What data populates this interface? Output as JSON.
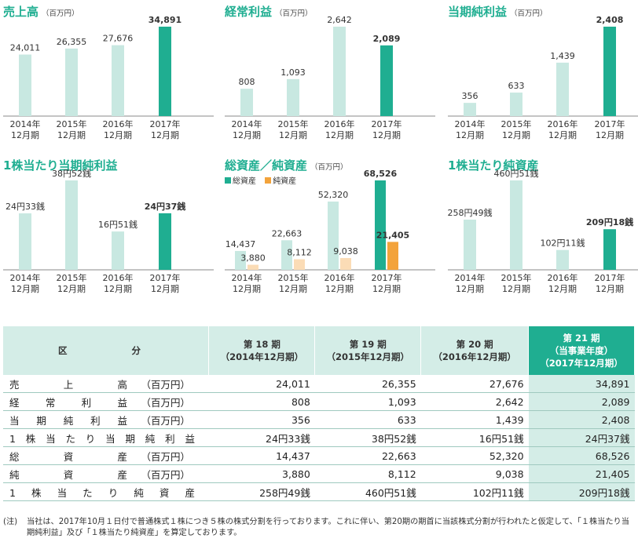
{
  "colors": {
    "accent": "#1fae91",
    "light": "#c8e8e1",
    "orange": "#f3a33b",
    "light_orange": "#fbdcb6"
  },
  "charts": [
    {
      "title": "売上高",
      "unit": "（百万円）"
    },
    {
      "title": "経常利益",
      "unit": "（百万円）"
    },
    {
      "title": "当期純利益",
      "unit": "（百万円）"
    },
    {
      "title": "1株当たり当期純利益",
      "unit": ""
    },
    {
      "title": "総資産／純資産",
      "unit": "（百万円）",
      "legend": [
        "総資産",
        "純資産"
      ]
    },
    {
      "title": "1株当たり純資産",
      "unit": ""
    }
  ],
  "chart_data": [
    {
      "type": "bar",
      "title": "売上高（百万円）",
      "categories": [
        "2014年\n12月期",
        "2015年\n12月期",
        "2016年\n12月期",
        "2017年\n12月期"
      ],
      "values": [
        24011,
        26355,
        27676,
        34891
      ],
      "labels": [
        "24,011",
        "26,355",
        "27,676",
        "34,891"
      ],
      "highlight_last": true
    },
    {
      "type": "bar",
      "title": "経常利益（百万円）",
      "categories": [
        "2014年\n12月期",
        "2015年\n12月期",
        "2016年\n12月期",
        "2017年\n12月期"
      ],
      "values": [
        808,
        1093,
        2642,
        2089
      ],
      "labels": [
        "808",
        "1,093",
        "2,642",
        "2,089"
      ],
      "highlight_last": true
    },
    {
      "type": "bar",
      "title": "当期純利益（百万円）",
      "categories": [
        "2014年\n12月期",
        "2015年\n12月期",
        "2016年\n12月期",
        "2017年\n12月期"
      ],
      "values": [
        356,
        633,
        1439,
        2408
      ],
      "labels": [
        "356",
        "633",
        "1,439",
        "2,408"
      ],
      "highlight_last": true
    },
    {
      "type": "bar",
      "title": "1株当たり当期純利益",
      "categories": [
        "2014年\n12月期",
        "2015年\n12月期",
        "2016年\n12月期",
        "2017年\n12月期"
      ],
      "values": [
        24.33,
        38.52,
        16.51,
        24.37
      ],
      "labels": [
        "24円33銭",
        "38円52銭",
        "16円51銭",
        "24円37銭"
      ],
      "highlight_last": true
    },
    {
      "type": "bar",
      "title": "総資産／純資産（百万円）",
      "categories": [
        "2014年\n12月期",
        "2015年\n12月期",
        "2016年\n12月期",
        "2017年\n12月期"
      ],
      "series": [
        {
          "name": "総資産",
          "values": [
            14437,
            22663,
            52320,
            68526
          ],
          "labels": [
            "14,437",
            "22,663",
            "52,320",
            "68,526"
          ]
        },
        {
          "name": "純資産",
          "values": [
            3880,
            8112,
            9038,
            21405
          ],
          "labels": [
            "3,880",
            "8,112",
            "9,038",
            "21,405"
          ]
        }
      ],
      "highlight_last": true
    },
    {
      "type": "bar",
      "title": "1株当たり純資産",
      "categories": [
        "2014年\n12月期",
        "2015年\n12月期",
        "2016年\n12月期",
        "2017年\n12月期"
      ],
      "values": [
        258.49,
        460.51,
        102.11,
        209.18
      ],
      "labels": [
        "258円49銭",
        "460円51銭",
        "102円11銭",
        "209円18銭"
      ],
      "highlight_last": true
    }
  ],
  "table": {
    "corner_a": "区",
    "corner_b": "分",
    "headers": [
      {
        "line1": "第 18 期",
        "line2": "（2014年12月期）"
      },
      {
        "line1": "第 19 期",
        "line2": "（2015年12月期）"
      },
      {
        "line1": "第 20 期",
        "line2": "（2016年12月期）"
      },
      {
        "line1": "第 21 期",
        "line2": "（当事業年度）",
        "line3": "（2017年12月期）"
      }
    ],
    "rows": [
      {
        "label": "売上高",
        "unit": "（百万円）",
        "values": [
          "24,011",
          "26,355",
          "27,676",
          "34,891"
        ]
      },
      {
        "label": "経常利益",
        "unit": "（百万円）",
        "values": [
          "808",
          "1,093",
          "2,642",
          "2,089"
        ]
      },
      {
        "label": "当期純利益",
        "unit": "（百万円）",
        "values": [
          "356",
          "633",
          "1,439",
          "2,408"
        ]
      },
      {
        "label": "1株当たり当期純利益",
        "unit": "",
        "values": [
          "24円33銭",
          "38円52銭",
          "16円51銭",
          "24円37銭"
        ]
      },
      {
        "label": "総資産",
        "unit": "（百万円）",
        "values": [
          "14,437",
          "22,663",
          "52,320",
          "68,526"
        ]
      },
      {
        "label": "純資産",
        "unit": "（百万円）",
        "values": [
          "3,880",
          "8,112",
          "9,038",
          "21,405"
        ]
      },
      {
        "label": "1株当たり純資産",
        "unit": "",
        "values": [
          "258円49銭",
          "460円51銭",
          "102円11銭",
          "209円18銭"
        ]
      }
    ]
  },
  "note": {
    "mark": "(注)",
    "text": "当社は、2017年10月１日付で普通株式１株につき５株の株式分割を行っております。これに伴い、第20期の期首に当該株式分割が行われたと仮定して、「１株当たり当期純利益」及び「１株当たり純資産」を算定しております。"
  }
}
